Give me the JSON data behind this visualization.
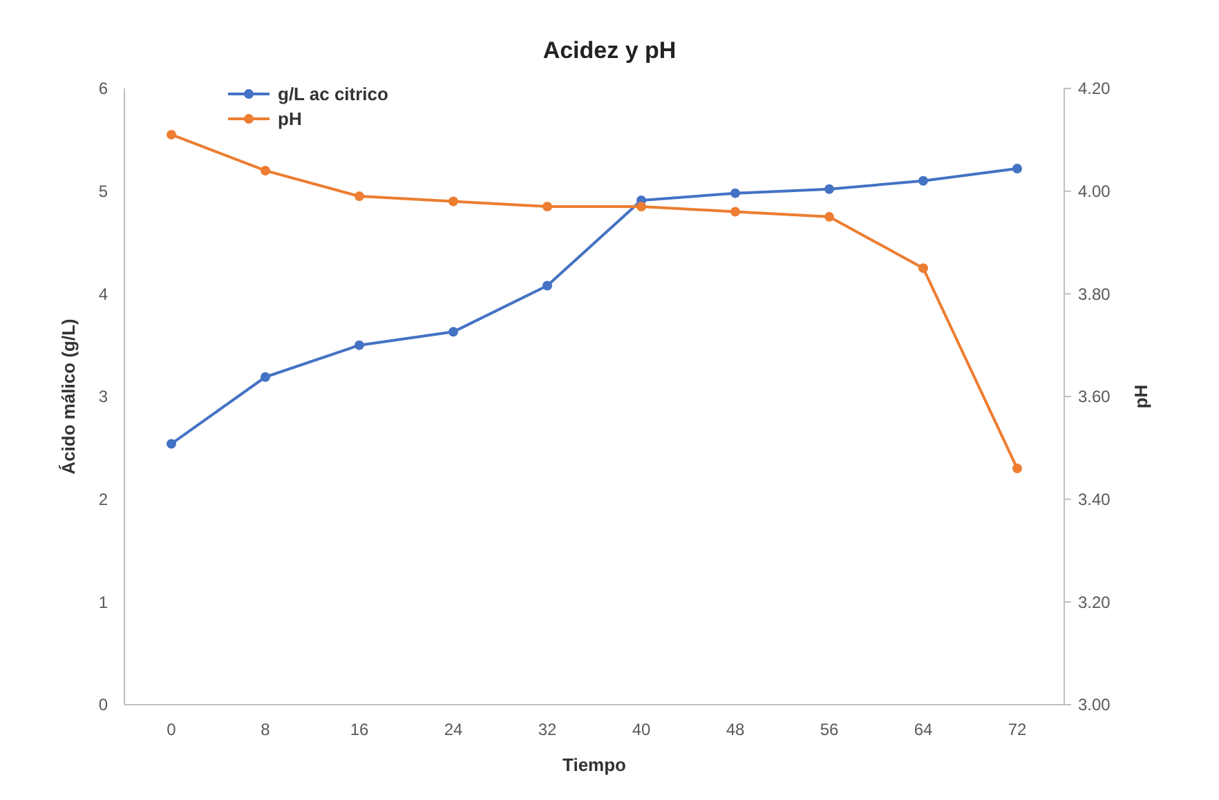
{
  "chart_data": {
    "type": "line",
    "title": "Acidez y pH",
    "xlabel": "Tiempo",
    "ylabel": "Ácido málico (g/L)",
    "y2label": "pH",
    "categories": [
      "0",
      "8",
      "16",
      "24",
      "32",
      "40",
      "48",
      "56",
      "64",
      "72"
    ],
    "series": [
      {
        "name": "g/L ac citrico",
        "color": "#4472c4",
        "values": [
          2.54,
          3.19,
          3.5,
          3.63,
          4.08,
          4.91,
          4.98,
          5.02,
          5.1,
          5.22
        ]
      },
      {
        "name": "pH",
        "color": "#ed7d31",
        "axis": "y2",
        "values": [
          4.11,
          4.04,
          3.99,
          3.98,
          3.97,
          3.97,
          3.96,
          3.95,
          3.85,
          3.46
        ]
      }
    ],
    "ylim": [
      0,
      6
    ],
    "yticks": [
      0,
      1,
      2,
      3,
      4,
      5,
      6
    ],
    "y2lim": [
      3.0,
      4.2
    ],
    "y2ticks": [
      {
        "value": 3.0,
        "label": "3.00"
      },
      {
        "value": 3.2,
        "label": "3.20"
      },
      {
        "value": 3.4,
        "label": "3.40"
      },
      {
        "value": 3.6,
        "label": "3.60"
      },
      {
        "value": 3.8,
        "label": "3.80"
      },
      {
        "value": 4.0,
        "label": "4.00"
      },
      {
        "value": 4.2,
        "label": "4.20"
      }
    ],
    "grid": false,
    "legend": "top left",
    "marker": "circle",
    "line_style": "solid"
  }
}
